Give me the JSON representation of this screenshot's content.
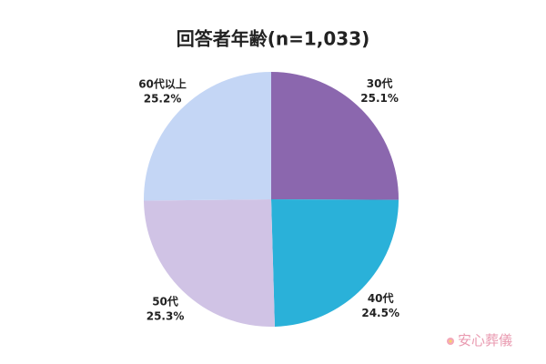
{
  "chart_data": {
    "type": "pie",
    "title": "回答者年齢(n=1,033)",
    "categories": [
      "30代",
      "40代",
      "50代",
      "60代以上"
    ],
    "values": [
      25.1,
      24.5,
      25.3,
      25.2
    ],
    "value_labels": [
      "25.1%",
      "24.5%",
      "25.3%",
      "25.2%"
    ],
    "colors": [
      "#8b67ae",
      "#2ab1d9",
      "#d0c3e5",
      "#c4d6f5"
    ],
    "watermark": "安心葬儀"
  }
}
